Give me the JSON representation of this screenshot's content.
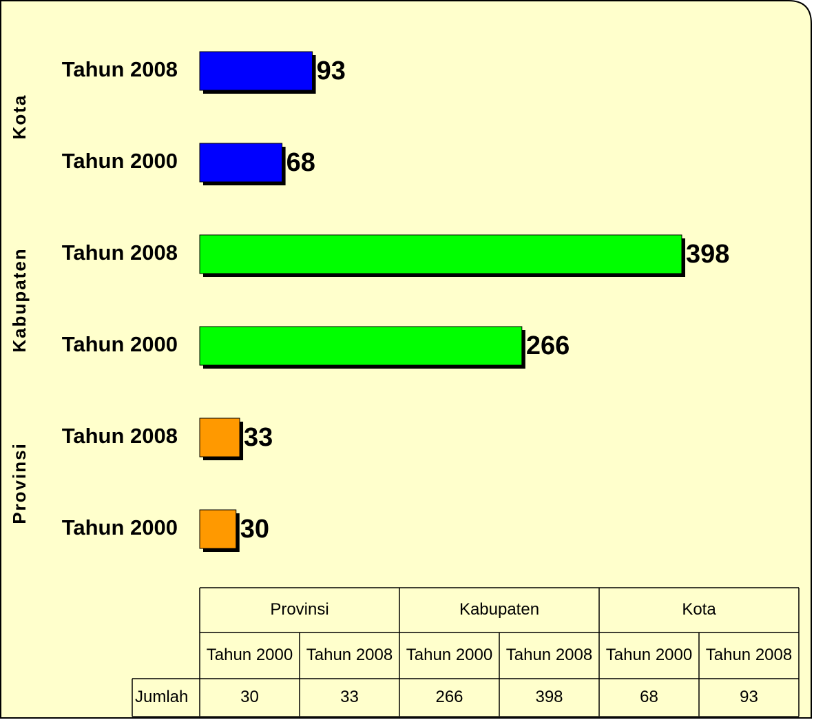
{
  "chart_data": {
    "type": "bar",
    "groups": [
      {
        "name": "Provinsi",
        "color": "#ff9900",
        "categories": [
          "Tahun 2000",
          "Tahun 2008"
        ],
        "values": [
          30,
          33
        ]
      },
      {
        "name": "Kabupaten",
        "color": "#00ff00",
        "categories": [
          "Tahun 2000",
          "Tahun 2008"
        ],
        "values": [
          266,
          398
        ]
      },
      {
        "name": "Kota",
        "color": "#0000ff",
        "categories": [
          "Tahun 2000",
          "Tahun 2008"
        ],
        "values": [
          68,
          93
        ]
      }
    ],
    "table_row_label": "Jumlah"
  }
}
